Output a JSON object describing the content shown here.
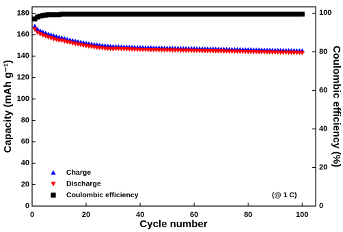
{
  "chart_data": {
    "type": "scatter",
    "x_label": "Cycle number",
    "y_label": "Capacity (mAh g⁻¹)",
    "y2_label": "Coulombic efficiency (%)",
    "annotation": "(@ 1 C)",
    "xlim": [
      0,
      105
    ],
    "xticks": [
      0,
      20,
      40,
      60,
      80,
      100
    ],
    "ylim": [
      0,
      186
    ],
    "yticks": [
      0,
      20,
      40,
      60,
      80,
      100,
      120,
      140,
      160,
      180
    ],
    "y2lim": [
      0,
      103.3
    ],
    "y2ticks": [
      0,
      20,
      40,
      60,
      80,
      100
    ],
    "legend": "lower left",
    "x": [
      1,
      2,
      3,
      4,
      5,
      6,
      7,
      8,
      9,
      10,
      11,
      12,
      13,
      14,
      15,
      16,
      17,
      18,
      19,
      20,
      21,
      22,
      23,
      24,
      25,
      26,
      27,
      28,
      29,
      30,
      31,
      32,
      33,
      34,
      35,
      36,
      37,
      38,
      39,
      40,
      41,
      42,
      43,
      44,
      45,
      46,
      47,
      48,
      49,
      50,
      51,
      52,
      53,
      54,
      55,
      56,
      57,
      58,
      59,
      60,
      61,
      62,
      63,
      64,
      65,
      66,
      67,
      68,
      69,
      70,
      71,
      72,
      73,
      74,
      75,
      76,
      77,
      78,
      79,
      80,
      81,
      82,
      83,
      84,
      85,
      86,
      87,
      88,
      89,
      90,
      91,
      92,
      93,
      94,
      95,
      96,
      97,
      98,
      99,
      100
    ],
    "series": [
      {
        "name": "Charge",
        "color": "#0000ff",
        "marker": "triangle-up",
        "values": [
          168,
          165,
          163.5,
          162.5,
          161.5,
          160.5,
          159.8,
          159,
          158.3,
          157.6,
          157,
          156.3,
          155.7,
          155.1,
          154.5,
          154,
          153.5,
          153,
          152.5,
          152,
          151.6,
          151.2,
          150.8,
          150.5,
          150.2,
          149.9,
          149.6,
          149.4,
          149.2,
          149,
          148.9,
          148.8,
          148.7,
          148.6,
          148.5,
          148.4,
          148.3,
          148.2,
          148.1,
          148,
          147.95,
          147.9,
          147.85,
          147.8,
          147.75,
          147.7,
          147.65,
          147.6,
          147.55,
          147.5,
          147.45,
          147.4,
          147.35,
          147.3,
          147.25,
          147.2,
          147.15,
          147.1,
          147.05,
          147,
          146.95,
          146.9,
          146.85,
          146.8,
          146.75,
          146.7,
          146.65,
          146.6,
          146.55,
          146.5,
          146.45,
          146.4,
          146.35,
          146.3,
          146.25,
          146.2,
          146.15,
          146.1,
          146.05,
          146,
          145.95,
          145.9,
          145.85,
          145.8,
          145.75,
          145.7,
          145.65,
          145.6,
          145.55,
          145.5,
          145.45,
          145.4,
          145.35,
          145.3,
          145.25,
          145.2,
          145.15,
          145.1,
          145.05,
          145
        ]
      },
      {
        "name": "Discharge",
        "color": "#ff0000",
        "marker": "triangle-down",
        "values": [
          165,
          162,
          160.5,
          159.5,
          158.5,
          157.5,
          156.8,
          156,
          155.3,
          154.6,
          154.5,
          153.8,
          153.2,
          152.6,
          152,
          151.5,
          151,
          150.5,
          150,
          149.5,
          149.1,
          148.7,
          148.3,
          148,
          147.7,
          147.4,
          147.1,
          146.9,
          146.7,
          146.5,
          146.9,
          146.8,
          146.7,
          146.6,
          146.5,
          146.4,
          146.3,
          146.2,
          146.1,
          146,
          145.95,
          145.9,
          145.85,
          145.8,
          145.75,
          145.7,
          145.65,
          145.6,
          145.55,
          145.5,
          145.45,
          145.4,
          145.35,
          145.3,
          145.25,
          145.2,
          145.15,
          145.1,
          145.05,
          145,
          144.95,
          144.9,
          144.85,
          144.8,
          144.75,
          144.7,
          144.65,
          144.6,
          144.55,
          144.5,
          144.45,
          144.4,
          144.35,
          144.3,
          144.25,
          144.2,
          144.15,
          144.1,
          144.05,
          144,
          143.95,
          143.9,
          143.85,
          143.8,
          143.75,
          143.7,
          143.65,
          143.6,
          143.55,
          143.5,
          143.45,
          143.4,
          143.35,
          143.3,
          143.25,
          143.2,
          143.15,
          143.1,
          143.05,
          143
        ]
      },
      {
        "name": "Coulombic efficiency",
        "color": "#000000",
        "marker": "square",
        "axis": "y2",
        "values": [
          97,
          98,
          98.5,
          98.8,
          99,
          99.2,
          99.2,
          99.2,
          99.2,
          99.2,
          99.5,
          99.5,
          99.5,
          99.5,
          99.5,
          99.5,
          99.5,
          99.5,
          99.5,
          99.5,
          99.5,
          99.5,
          99.5,
          99.5,
          99.5,
          99.5,
          99.5,
          99.5,
          99.5,
          99.5,
          99.5,
          99.5,
          99.5,
          99.5,
          99.5,
          99.5,
          99.5,
          99.5,
          99.5,
          99.5,
          99.5,
          99.5,
          99.5,
          99.5,
          99.5,
          99.5,
          99.5,
          99.5,
          99.5,
          99.5,
          99.5,
          99.5,
          99.5,
          99.5,
          99.5,
          99.5,
          99.5,
          99.5,
          99.5,
          99.5,
          99.5,
          99.5,
          99.5,
          99.5,
          99.5,
          99.5,
          99.5,
          99.5,
          99.5,
          99.5,
          99.5,
          99.5,
          99.5,
          99.5,
          99.5,
          99.5,
          99.5,
          99.5,
          99.5,
          99.5,
          99.5,
          99.5,
          99.5,
          99.5,
          99.5,
          99.5,
          99.5,
          99.5,
          99.5,
          99.5,
          99.5,
          99.5,
          99.5,
          99.5,
          99.5,
          99.5,
          99.5,
          99.5,
          99.5,
          99.5
        ]
      }
    ]
  }
}
